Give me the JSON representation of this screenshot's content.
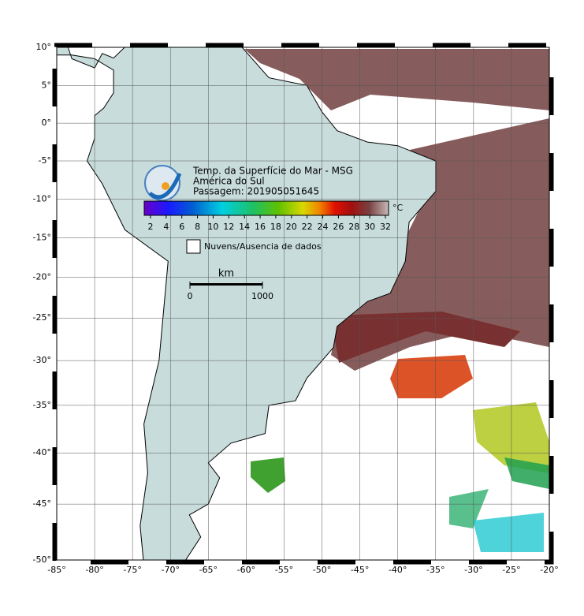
{
  "map": {
    "title": "Temp. da Superfície do Mar - MSG",
    "subtitle": "América do Sul",
    "pass": "Passagem: 201905051645",
    "lonlim": [
      -85,
      -20
    ],
    "latlim": [
      -50,
      10
    ],
    "lon_ticks": [
      {
        "value": -85,
        "label": "-85°"
      },
      {
        "value": -80,
        "label": "-80°"
      },
      {
        "value": -75,
        "label": "-75°"
      },
      {
        "value": -70,
        "label": "-70°"
      },
      {
        "value": -65,
        "label": "-65°"
      },
      {
        "value": -60,
        "label": "-60°"
      },
      {
        "value": -55,
        "label": "-55°"
      },
      {
        "value": -50,
        "label": "-50°"
      },
      {
        "value": -45,
        "label": "-45°"
      },
      {
        "value": -40,
        "label": "-40°"
      },
      {
        "value": -35,
        "label": "-35°"
      },
      {
        "value": -30,
        "label": "-30°"
      },
      {
        "value": -25,
        "label": "-25°"
      },
      {
        "value": -20,
        "label": "-20°"
      }
    ],
    "lat_ticks": [
      {
        "value": 10,
        "label": "10°"
      },
      {
        "value": 5,
        "label": "5°"
      },
      {
        "value": 0,
        "label": "0°"
      },
      {
        "value": -5,
        "label": "-5°"
      },
      {
        "value": -10,
        "label": "-10°"
      },
      {
        "value": -15,
        "label": "-15°"
      },
      {
        "value": -20,
        "label": "-20°"
      },
      {
        "value": -25,
        "label": "-25°"
      },
      {
        "value": -30,
        "label": "-30°"
      },
      {
        "value": -35,
        "label": "-35°"
      },
      {
        "value": -40,
        "label": "-40°"
      },
      {
        "value": -45,
        "label": "-45°"
      },
      {
        "value": -50,
        "label": "-50°"
      }
    ],
    "colorbar": {
      "unit": "°C",
      "lim": [
        1.2,
        32.4
      ],
      "ticks": [
        2,
        4,
        6,
        8,
        10,
        12,
        14,
        16,
        18,
        20,
        22,
        24,
        26,
        28,
        30,
        32
      ]
    },
    "legend": "Nuvens/Ausencia de dados",
    "scale": {
      "unit": "km",
      "ticks": [
        0,
        1000
      ]
    }
  }
}
